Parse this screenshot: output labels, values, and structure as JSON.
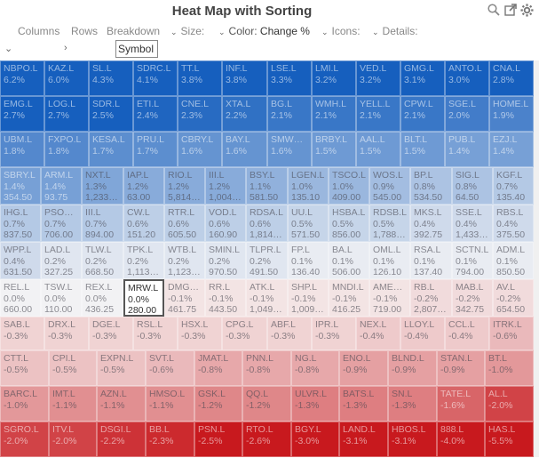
{
  "title": "Heat Map with Sorting",
  "toolbar": {
    "columns": "Columns",
    "rows": "Rows",
    "breakdown": "Breakdown",
    "size_label": "Size:",
    "color_label": "Color:",
    "color_value": "Change %",
    "icons_label": "Icons:",
    "details_label": "Details:"
  },
  "search": {
    "value": "Symbol"
  },
  "icons": {
    "search": "search-icon",
    "popout": "popout-icon",
    "settings": "gear-icon"
  },
  "rows": [
    {
      "height": 40,
      "cells": [
        {
          "s": "NBPO.L",
          "c": "6.2%"
        },
        {
          "s": "KAZ.L",
          "c": "6.0%"
        },
        {
          "s": "SL.L",
          "c": "4.3%"
        },
        {
          "s": "SDRC.L",
          "c": "4.1%"
        },
        {
          "s": "TT.L",
          "c": "3.8%"
        },
        {
          "s": "INF.L",
          "c": "3.8%"
        },
        {
          "s": "LSE.L",
          "c": "3.3%"
        },
        {
          "s": "LMI.L",
          "c": "3.2%"
        },
        {
          "s": "VED.L",
          "c": "3.2%"
        },
        {
          "s": "GMG.L",
          "c": "3.1%"
        },
        {
          "s": "ANTO.L",
          "c": "3.0%"
        },
        {
          "s": "CNA.L",
          "c": "2.8%"
        }
      ]
    },
    {
      "height": 40,
      "cells": [
        {
          "s": "EMG.L",
          "c": "2.7%"
        },
        {
          "s": "LOG.L",
          "c": "2.7%"
        },
        {
          "s": "SDR.L",
          "c": "2.5%"
        },
        {
          "s": "ETI.L",
          "c": "2.4%"
        },
        {
          "s": "CNE.L",
          "c": "2.3%"
        },
        {
          "s": "XTA.L",
          "c": "2.2%"
        },
        {
          "s": "BG.L",
          "c": "2.1%"
        },
        {
          "s": "WMH.L",
          "c": "2.1%"
        },
        {
          "s": "YELL.L",
          "c": "2.1%"
        },
        {
          "s": "CPW.L",
          "c": "2.1%"
        },
        {
          "s": "SGE.L",
          "c": "2.0%"
        },
        {
          "s": "HOME.L",
          "c": "1.9%"
        }
      ]
    },
    {
      "height": 40,
      "cells": [
        {
          "s": "UBM.L",
          "c": "1.8%"
        },
        {
          "s": "FXPO.L",
          "c": "1.8%"
        },
        {
          "s": "KESA.L",
          "c": "1.7%"
        },
        {
          "s": "PRU.L",
          "c": "1.7%"
        },
        {
          "s": "CBRY.L",
          "c": "1.6%"
        },
        {
          "s": "BAY.L",
          "c": "1.6%"
        },
        {
          "s": "SMW…",
          "c": "1.6%"
        },
        {
          "s": "BRBY.L",
          "c": "1.5%"
        },
        {
          "s": "AAL.L",
          "c": "1.5%"
        },
        {
          "s": "BLT.L",
          "c": "1.5%"
        },
        {
          "s": "PUB.L",
          "c": "1.4%"
        },
        {
          "s": "EZJ.L",
          "c": "1.4%"
        }
      ]
    },
    {
      "height": 42,
      "cells": [
        {
          "s": "SBRY.L",
          "c": "1.4%",
          "p": "354.50"
        },
        {
          "s": "ARM.L",
          "c": "1.4%",
          "p": "93.75"
        },
        {
          "s": "NXT.L",
          "c": "1.3%",
          "p": "1,233…"
        },
        {
          "s": "IAP.L",
          "c": "1.2%",
          "p": "63.00"
        },
        {
          "s": "RIO.L",
          "c": "1.2%",
          "p": "5,814…"
        },
        {
          "s": "III.L",
          "c": "1.2%",
          "p": "1,004…"
        },
        {
          "s": "BSY.L",
          "c": "1.1%",
          "p": "581.50"
        },
        {
          "s": "LGEN.L",
          "c": "1.0%",
          "p": "135.10"
        },
        {
          "s": "TSCO.L",
          "c": "1.0%",
          "p": "409.00"
        },
        {
          "s": "WOS.L",
          "c": "0.9%",
          "p": "545.00"
        },
        {
          "s": "BP.L",
          "c": "0.8%",
          "p": "534.50"
        },
        {
          "s": "SIG.L",
          "c": "0.8%",
          "p": "64.50"
        },
        {
          "s": "KGF.L",
          "c": "0.7%",
          "p": "135.40"
        }
      ]
    },
    {
      "height": 42,
      "cells": [
        {
          "s": "IHG.L",
          "c": "0.7%",
          "p": "837.50"
        },
        {
          "s": "PSO…",
          "c": "0.7%",
          "p": "706.00"
        },
        {
          "s": "III.L",
          "c": "0.7%",
          "p": "894.00"
        },
        {
          "s": "CW.L",
          "c": "0.6%",
          "p": "151.20"
        },
        {
          "s": "RTR.L",
          "c": "0.6%",
          "p": "605.50"
        },
        {
          "s": "VOD.L",
          "c": "0.6%",
          "p": "160.90"
        },
        {
          "s": "RDSA.L",
          "c": "0.6%",
          "p": "1,814…"
        },
        {
          "s": "UU.L",
          "c": "0.5%",
          "p": "571.50"
        },
        {
          "s": "HSBA.L",
          "c": "0.5%",
          "p": "856.00"
        },
        {
          "s": "RDSB.L",
          "c": "0.5%",
          "p": "1,788…"
        },
        {
          "s": "MKS.L",
          "c": "0.4%",
          "p": "392.75"
        },
        {
          "s": "SSE.L",
          "c": "0.4%",
          "p": "1,433…"
        },
        {
          "s": "RBS.L",
          "c": "0.4%",
          "p": "375.50"
        }
      ]
    },
    {
      "height": 42,
      "cells": [
        {
          "s": "WPP.L",
          "c": "0.4%",
          "p": "631.50"
        },
        {
          "s": "LAD.L",
          "c": "0.2%",
          "p": "327.25"
        },
        {
          "s": "TLW.L",
          "c": "0.2%",
          "p": "668.50"
        },
        {
          "s": "TPK.L",
          "c": "0.2%",
          "p": "1,113…"
        },
        {
          "s": "WTB.L",
          "c": "0.2%",
          "p": "1,123…"
        },
        {
          "s": "SMIN.L",
          "c": "0.2%",
          "p": "970.50"
        },
        {
          "s": "TLPR.L",
          "c": "0.2%",
          "p": "491.50"
        },
        {
          "s": "FP.L",
          "c": "0.1%",
          "p": "136.40"
        },
        {
          "s": "BA.L",
          "c": "0.1%",
          "p": "506.00"
        },
        {
          "s": "OML.L",
          "c": "0.1%",
          "p": "126.10"
        },
        {
          "s": "RSA.L",
          "c": "0.1%",
          "p": "137.40"
        },
        {
          "s": "SCTN.L",
          "c": "0.1%",
          "p": "794.00"
        },
        {
          "s": "ADM.L",
          "c": "0.1%",
          "p": "850.50"
        }
      ]
    },
    {
      "height": 42,
      "cells": [
        {
          "s": "REL.L",
          "c": "0.0%",
          "p": "660.00"
        },
        {
          "s": "TSW.L",
          "c": "0.0%",
          "p": "110.00"
        },
        {
          "s": "REX.L",
          "c": "0.0%",
          "p": "436.25"
        },
        {
          "s": "MRW.L",
          "c": "0.0%",
          "p": "280.00",
          "sel": true
        },
        {
          "s": "DMG…",
          "c": "-0.1%",
          "p": "461.75"
        },
        {
          "s": "RR.L",
          "c": "-0.1%",
          "p": "443.50"
        },
        {
          "s": "ATK.L",
          "c": "-0.1%",
          "p": "1,049…"
        },
        {
          "s": "SHP.L",
          "c": "-0.1%",
          "p": "1,009…"
        },
        {
          "s": "MNDI.L",
          "c": "-0.1%",
          "p": "416.25"
        },
        {
          "s": "AME…",
          "c": "-0.1%",
          "p": "719.00"
        },
        {
          "s": "RB.L",
          "c": "-0.2%",
          "p": "2,807…"
        },
        {
          "s": "MAB.L",
          "c": "-0.2%",
          "p": "342.75"
        },
        {
          "s": "AV.L",
          "c": "-0.2%",
          "p": "654.50"
        }
      ]
    },
    {
      "height": 38,
      "cells": [
        {
          "s": "SAB.L",
          "c": "-0.3%"
        },
        {
          "s": "DRX.L",
          "c": "-0.3%"
        },
        {
          "s": "DGE.L",
          "c": "-0.3%"
        },
        {
          "s": "RSL.L",
          "c": "-0.3%"
        },
        {
          "s": "HSX.L",
          "c": "-0.3%"
        },
        {
          "s": "CPG.L",
          "c": "-0.3%"
        },
        {
          "s": "ABF.L",
          "c": "-0.3%"
        },
        {
          "s": "IPR.L",
          "c": "-0.3%"
        },
        {
          "s": "NEX.L",
          "c": "-0.4%"
        },
        {
          "s": "LLOY.L",
          "c": "-0.4%"
        },
        {
          "s": "CCL.L",
          "c": "-0.4%"
        },
        {
          "s": "ITRK.L",
          "c": "-0.6%"
        }
      ]
    },
    {
      "height": 40,
      "cells": [
        {
          "s": "CTT.L",
          "c": "-0.5%"
        },
        {
          "s": "CPI.L",
          "c": "-0.5%"
        },
        {
          "s": "EXPN.L",
          "c": "-0.5%"
        },
        {
          "s": "SVT.L",
          "c": "-0.6%"
        },
        {
          "s": "JMAT.L",
          "c": "-0.8%"
        },
        {
          "s": "PNN.L",
          "c": "-0.8%"
        },
        {
          "s": "NG.L",
          "c": "-0.8%"
        },
        {
          "s": "ENO.L",
          "c": "-0.9%"
        },
        {
          "s": "BLND.L",
          "c": "-0.9%"
        },
        {
          "s": "STAN.L",
          "c": "-0.9%"
        },
        {
          "s": "BT.L",
          "c": "-1.0%"
        }
      ]
    },
    {
      "height": 40,
      "cells": [
        {
          "s": "BARC.L",
          "c": "-1.0%"
        },
        {
          "s": "IMT.L",
          "c": "-1.1%"
        },
        {
          "s": "AZN.L",
          "c": "-1.1%"
        },
        {
          "s": "HMSO.L",
          "c": "-1.1%"
        },
        {
          "s": "GSK.L",
          "c": "-1.2%"
        },
        {
          "s": "QQ.L",
          "c": "-1.2%"
        },
        {
          "s": "ULVR.L",
          "c": "-1.3%"
        },
        {
          "s": "BATS.L",
          "c": "-1.3%"
        },
        {
          "s": "SN.L",
          "c": "-1.3%"
        },
        {
          "s": "TATE.L",
          "c": "-1.6%"
        },
        {
          "s": "AL.L",
          "c": "-2.0%"
        }
      ]
    },
    {
      "height": 40,
      "cells": [
        {
          "s": "SGRO.L",
          "c": "-2.0%"
        },
        {
          "s": "ITV.L",
          "c": "-2.0%"
        },
        {
          "s": "DSGI.L",
          "c": "-2.2%"
        },
        {
          "s": "BB.L",
          "c": "-2.3%"
        },
        {
          "s": "PSN.L",
          "c": "-2.5%"
        },
        {
          "s": "RTO.L",
          "c": "-2.6%"
        },
        {
          "s": "BGY.L",
          "c": "-3.0%"
        },
        {
          "s": "LAND.L",
          "c": "-3.1%"
        },
        {
          "s": "HBOS.L",
          "c": "-3.1%"
        },
        {
          "s": "888.L",
          "c": "-4.0%"
        },
        {
          "s": "HAS.L",
          "c": "-5.5%"
        }
      ]
    }
  ]
}
